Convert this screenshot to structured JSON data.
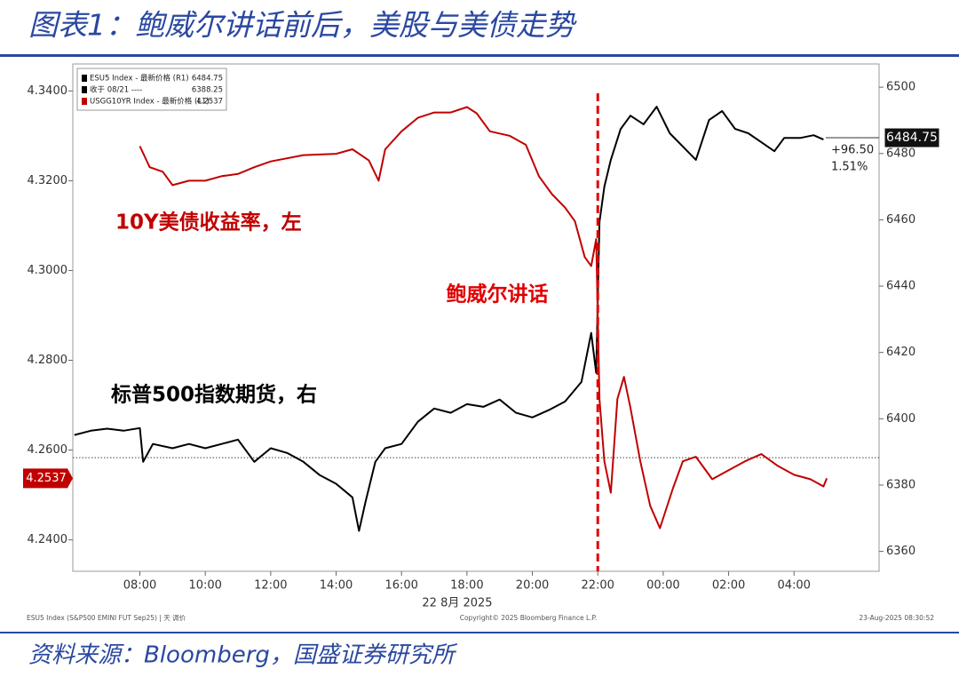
{
  "title": "图表1：鲍威尔讲话前后，美股与美债走势",
  "source": "资料来源：Bloomberg，国盛证券研究所",
  "chart_data": {
    "type": "line",
    "series": [
      {
        "name": "ESU5 Index - 最新价格 (R1)",
        "color": "#000000",
        "axis": "y2",
        "legend_value": 6484.75,
        "x": [
          6.0,
          6.5,
          7.0,
          7.5,
          8.0,
          8.1,
          8.4,
          9.0,
          9.5,
          10.0,
          10.5,
          11.0,
          11.5,
          12.0,
          12.5,
          13.0,
          13.5,
          14.0,
          14.5,
          14.7,
          14.9,
          15.2,
          15.5,
          16.0,
          16.5,
          17.0,
          17.5,
          18.0,
          18.5,
          19.0,
          19.5,
          20.0,
          20.5,
          21.0,
          21.5,
          21.8,
          21.95,
          22.05,
          22.2,
          22.4,
          22.7,
          23.0,
          23.4,
          23.8,
          24.2,
          24.6,
          25.0,
          25.4,
          25.8,
          26.2,
          26.6,
          27.0,
          27.4,
          27.7,
          28.2,
          28.6,
          28.9
        ],
        "values": [
          6395.1,
          6396.4,
          6397,
          6396.4,
          6397.2,
          6387,
          6392.4,
          6391.1,
          6392.4,
          6391.1,
          6392.4,
          6393.7,
          6387,
          6391.1,
          6389.7,
          6387,
          6383,
          6380.4,
          6376.3,
          6366.2,
          6375,
          6387,
          6391.1,
          6392.4,
          6399.1,
          6403.1,
          6401.8,
          6404.4,
          6403.6,
          6405.8,
          6401.8,
          6400.4,
          6402.6,
          6405.2,
          6411.1,
          6425.9,
          6413.8,
          6459.3,
          6470,
          6478.1,
          6487.4,
          6491.4,
          6488.8,
          6494.1,
          6486.1,
          6482.1,
          6478.1,
          6490.1,
          6492.8,
          6487.4,
          6486.1,
          6483.4,
          6480.7,
          6484.7,
          6484.7,
          6485.5,
          6484.2
        ]
      },
      {
        "name": "USGG10YR Index - 最新价格 (L1)",
        "color": "#c00000",
        "axis": "y",
        "legend_value": 4.2537,
        "x": [
          8.0,
          8.3,
          8.7,
          9.0,
          9.5,
          10.0,
          10.5,
          11.0,
          11.5,
          12.0,
          13.0,
          14.0,
          14.5,
          15.0,
          15.3,
          15.5,
          16.0,
          16.5,
          17.0,
          17.5,
          18.0,
          18.3,
          18.7,
          19.3,
          19.8,
          20.2,
          20.6,
          21.0,
          21.3,
          21.6,
          21.8,
          21.95,
          22.05,
          22.2,
          22.4,
          22.6,
          22.8,
          23.0,
          23.3,
          23.6,
          23.9,
          24.3,
          24.6,
          25.0,
          25.5,
          26.0,
          26.5,
          27.0,
          27.5,
          28.0,
          28.5,
          28.9,
          29.0
        ],
        "values": [
          4.3277,
          4.323,
          4.322,
          4.319,
          4.32,
          4.32,
          4.321,
          4.3215,
          4.323,
          4.3243,
          4.3257,
          4.326,
          4.327,
          4.3245,
          4.32,
          4.327,
          4.331,
          4.334,
          4.3352,
          4.3352,
          4.3364,
          4.335,
          4.331,
          4.33,
          4.328,
          4.321,
          4.317,
          4.314,
          4.311,
          4.303,
          4.301,
          4.307,
          4.2714,
          4.2575,
          4.2505,
          4.2714,
          4.2763,
          4.2694,
          4.2575,
          4.2476,
          4.2426,
          4.2515,
          4.2575,
          4.2585,
          4.2535,
          4.2555,
          4.2575,
          4.2591,
          4.2565,
          4.2545,
          4.2535,
          4.2519,
          4.2537
        ]
      }
    ],
    "reference": {
      "name": "收于 08/21 ----",
      "value": 6388.25,
      "axis": "y2"
    },
    "change_labels": [
      "+96.50",
      "1.51%"
    ],
    "annotations": [
      {
        "text": "10Y美债收益率，左",
        "color": "#c00000"
      },
      {
        "text": "标普500指数期货，右",
        "color": "#000000"
      }
    ],
    "event": {
      "x": 22,
      "label": "鲍威尔讲话",
      "color": "#e00000"
    },
    "xlim": [
      5.95,
      30.6
    ],
    "xticks": [
      {
        "value": 8,
        "label": "08:00"
      },
      {
        "value": 10,
        "label": "10:00"
      },
      {
        "value": 12,
        "label": "12:00"
      },
      {
        "value": 14,
        "label": "14:00"
      },
      {
        "value": 16,
        "label": "16:00"
      },
      {
        "value": 18,
        "label": "18:00"
      },
      {
        "value": 20,
        "label": "20:00"
      },
      {
        "value": 22,
        "label": "22:00"
      },
      {
        "value": 24,
        "label": "00:00"
      },
      {
        "value": 26,
        "label": "02:00"
      },
      {
        "value": 28,
        "label": "04:00"
      }
    ],
    "x_date_label": "22 8月 2025",
    "ylim": [
      4.233,
      4.346
    ],
    "yticks": [
      {
        "value": 4.24,
        "label": "4.2400"
      },
      {
        "value": 4.26,
        "label": "4.2600"
      },
      {
        "value": 4.28,
        "label": "4.2800"
      },
      {
        "value": 4.3,
        "label": "4.3000"
      },
      {
        "value": 4.32,
        "label": "4.3200"
      },
      {
        "value": 4.34,
        "label": "4.3400"
      }
    ],
    "y2lim": [
      6354,
      6507
    ],
    "y2ticks": [
      6360,
      6380,
      6400,
      6420,
      6440,
      6460,
      6480,
      6500
    ],
    "footer": [
      "ESU5 Index (S&P500 EMINI FUT Sep25) | 天 调价",
      "Copyright© 2025 Bloomberg Finance L.P.",
      "23-Aug-2025 08:30:52"
    ]
  }
}
